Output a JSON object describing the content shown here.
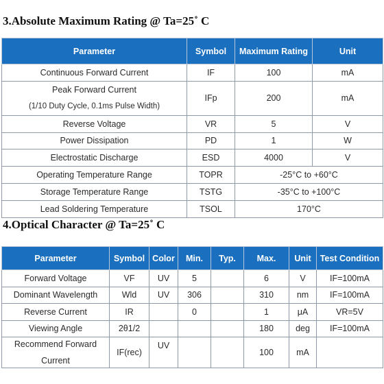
{
  "section1": {
    "title": "3.Absolute Maximum Rating @ Ta=25˚ C",
    "headers": [
      "Parameter",
      "Symbol",
      "Maximum Rating",
      "Unit"
    ],
    "rows": [
      {
        "parameter": "Continuous Forward Current",
        "symbol": "IF",
        "rating": "100",
        "unit": "mA"
      },
      {
        "parameter": "Peak Forward Current",
        "parameter_note": "(1/10 Duty Cycle, 0.1ms Pulse Width)",
        "symbol": "IFp",
        "rating": "200",
        "unit": "mA"
      },
      {
        "parameter": "Reverse Voltage",
        "symbol": "VR",
        "rating": "5",
        "unit": "V"
      },
      {
        "parameter": "Power Dissipation",
        "symbol": "PD",
        "rating": "1",
        "unit": "W"
      },
      {
        "parameter": "Electrostatic Discharge",
        "symbol": "ESD",
        "rating": "4000",
        "unit": "V"
      },
      {
        "parameter": "Operating Temperature Range",
        "symbol": "TOPR",
        "rating": "-25°C to +60°C"
      },
      {
        "parameter": "Storage Temperature Range",
        "symbol": "TSTG",
        "rating": "-35°C to +100°C"
      },
      {
        "parameter": "Lead Soldering Temperature",
        "symbol": "TSOL",
        "rating": "170°C"
      }
    ]
  },
  "section2": {
    "title": "4.Optical Character @ Ta=25˚ C",
    "headers": [
      "Parameter",
      "Symbol",
      "Color",
      "Min.",
      "Typ.",
      "Max.",
      "Unit",
      "Test Condition"
    ],
    "rows": [
      {
        "parameter": "Forward Voltage",
        "symbol": "VF",
        "color": "UV",
        "min": "5",
        "typ": "",
        "max": "6",
        "unit": "V",
        "condition": "IF=100mA"
      },
      {
        "parameter": "Dominant Wavelength",
        "symbol": "Wld",
        "color": "UV",
        "min": "306",
        "typ": "",
        "max": "310",
        "unit": "nm",
        "condition": "IF=100mA"
      },
      {
        "parameter": "Reverse Current",
        "symbol": "IR",
        "color": "",
        "min": "0",
        "typ": "",
        "max": "1",
        "unit": "μA",
        "condition": "VR=5V"
      },
      {
        "parameter": "Viewing Angle",
        "symbol": "2θ1/2",
        "color": "",
        "min": "",
        "typ": "",
        "max": "180",
        "unit": "deg",
        "condition": "IF=100mA"
      },
      {
        "parameter_line1": "Recommend Forward",
        "parameter_line2": "Current",
        "symbol": "IF(rec)",
        "color": "UV",
        "min": "",
        "typ": "",
        "max": "100",
        "unit": "mA",
        "condition": ""
      }
    ]
  }
}
